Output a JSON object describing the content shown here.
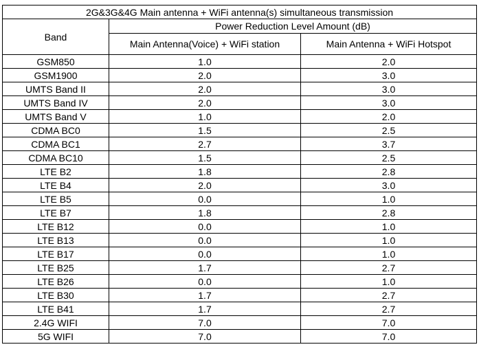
{
  "table": {
    "title": "2G&3G&4G Main antenna + WiFi antenna(s) simultaneous transmission",
    "band_header": "Band",
    "group_header": "Power Reduction Level Amount (dB)",
    "columns": [
      "Main Antenna(Voice) + WiFi station",
      "Main Antenna + WiFi Hotspot"
    ],
    "rows": [
      {
        "band": "GSM850",
        "voice_wifi_station": "1.0",
        "wifi_hotspot": "2.0"
      },
      {
        "band": "GSM1900",
        "voice_wifi_station": "2.0",
        "wifi_hotspot": "3.0"
      },
      {
        "band": "UMTS Band II",
        "voice_wifi_station": "2.0",
        "wifi_hotspot": "3.0"
      },
      {
        "band": "UMTS Band IV",
        "voice_wifi_station": "2.0",
        "wifi_hotspot": "3.0"
      },
      {
        "band": "UMTS Band V",
        "voice_wifi_station": "1.0",
        "wifi_hotspot": "2.0"
      },
      {
        "band": "CDMA BC0",
        "voice_wifi_station": "1.5",
        "wifi_hotspot": "2.5"
      },
      {
        "band": "CDMA BC1",
        "voice_wifi_station": "2.7",
        "wifi_hotspot": "3.7"
      },
      {
        "band": "CDMA BC10",
        "voice_wifi_station": "1.5",
        "wifi_hotspot": "2.5"
      },
      {
        "band": "LTE B2",
        "voice_wifi_station": "1.8",
        "wifi_hotspot": "2.8"
      },
      {
        "band": "LTE B4",
        "voice_wifi_station": "2.0",
        "wifi_hotspot": "3.0"
      },
      {
        "band": "LTE B5",
        "voice_wifi_station": "0.0",
        "wifi_hotspot": "1.0"
      },
      {
        "band": "LTE B7",
        "voice_wifi_station": "1.8",
        "wifi_hotspot": "2.8"
      },
      {
        "band": "LTE B12",
        "voice_wifi_station": "0.0",
        "wifi_hotspot": "1.0"
      },
      {
        "band": "LTE B13",
        "voice_wifi_station": "0.0",
        "wifi_hotspot": "1.0"
      },
      {
        "band": "LTE B17",
        "voice_wifi_station": "0.0",
        "wifi_hotspot": "1.0"
      },
      {
        "band": "LTE B25",
        "voice_wifi_station": "1.7",
        "wifi_hotspot": "2.7"
      },
      {
        "band": "LTE B26",
        "voice_wifi_station": "0.0",
        "wifi_hotspot": "1.0"
      },
      {
        "band": "LTE B30",
        "voice_wifi_station": "1.7",
        "wifi_hotspot": "2.7"
      },
      {
        "band": "LTE B41",
        "voice_wifi_station": "1.7",
        "wifi_hotspot": "2.7"
      },
      {
        "band": "2.4G WIFI",
        "voice_wifi_station": "7.0",
        "wifi_hotspot": "7.0"
      },
      {
        "band": "5G WIFI",
        "voice_wifi_station": "7.0",
        "wifi_hotspot": "7.0"
      }
    ]
  }
}
